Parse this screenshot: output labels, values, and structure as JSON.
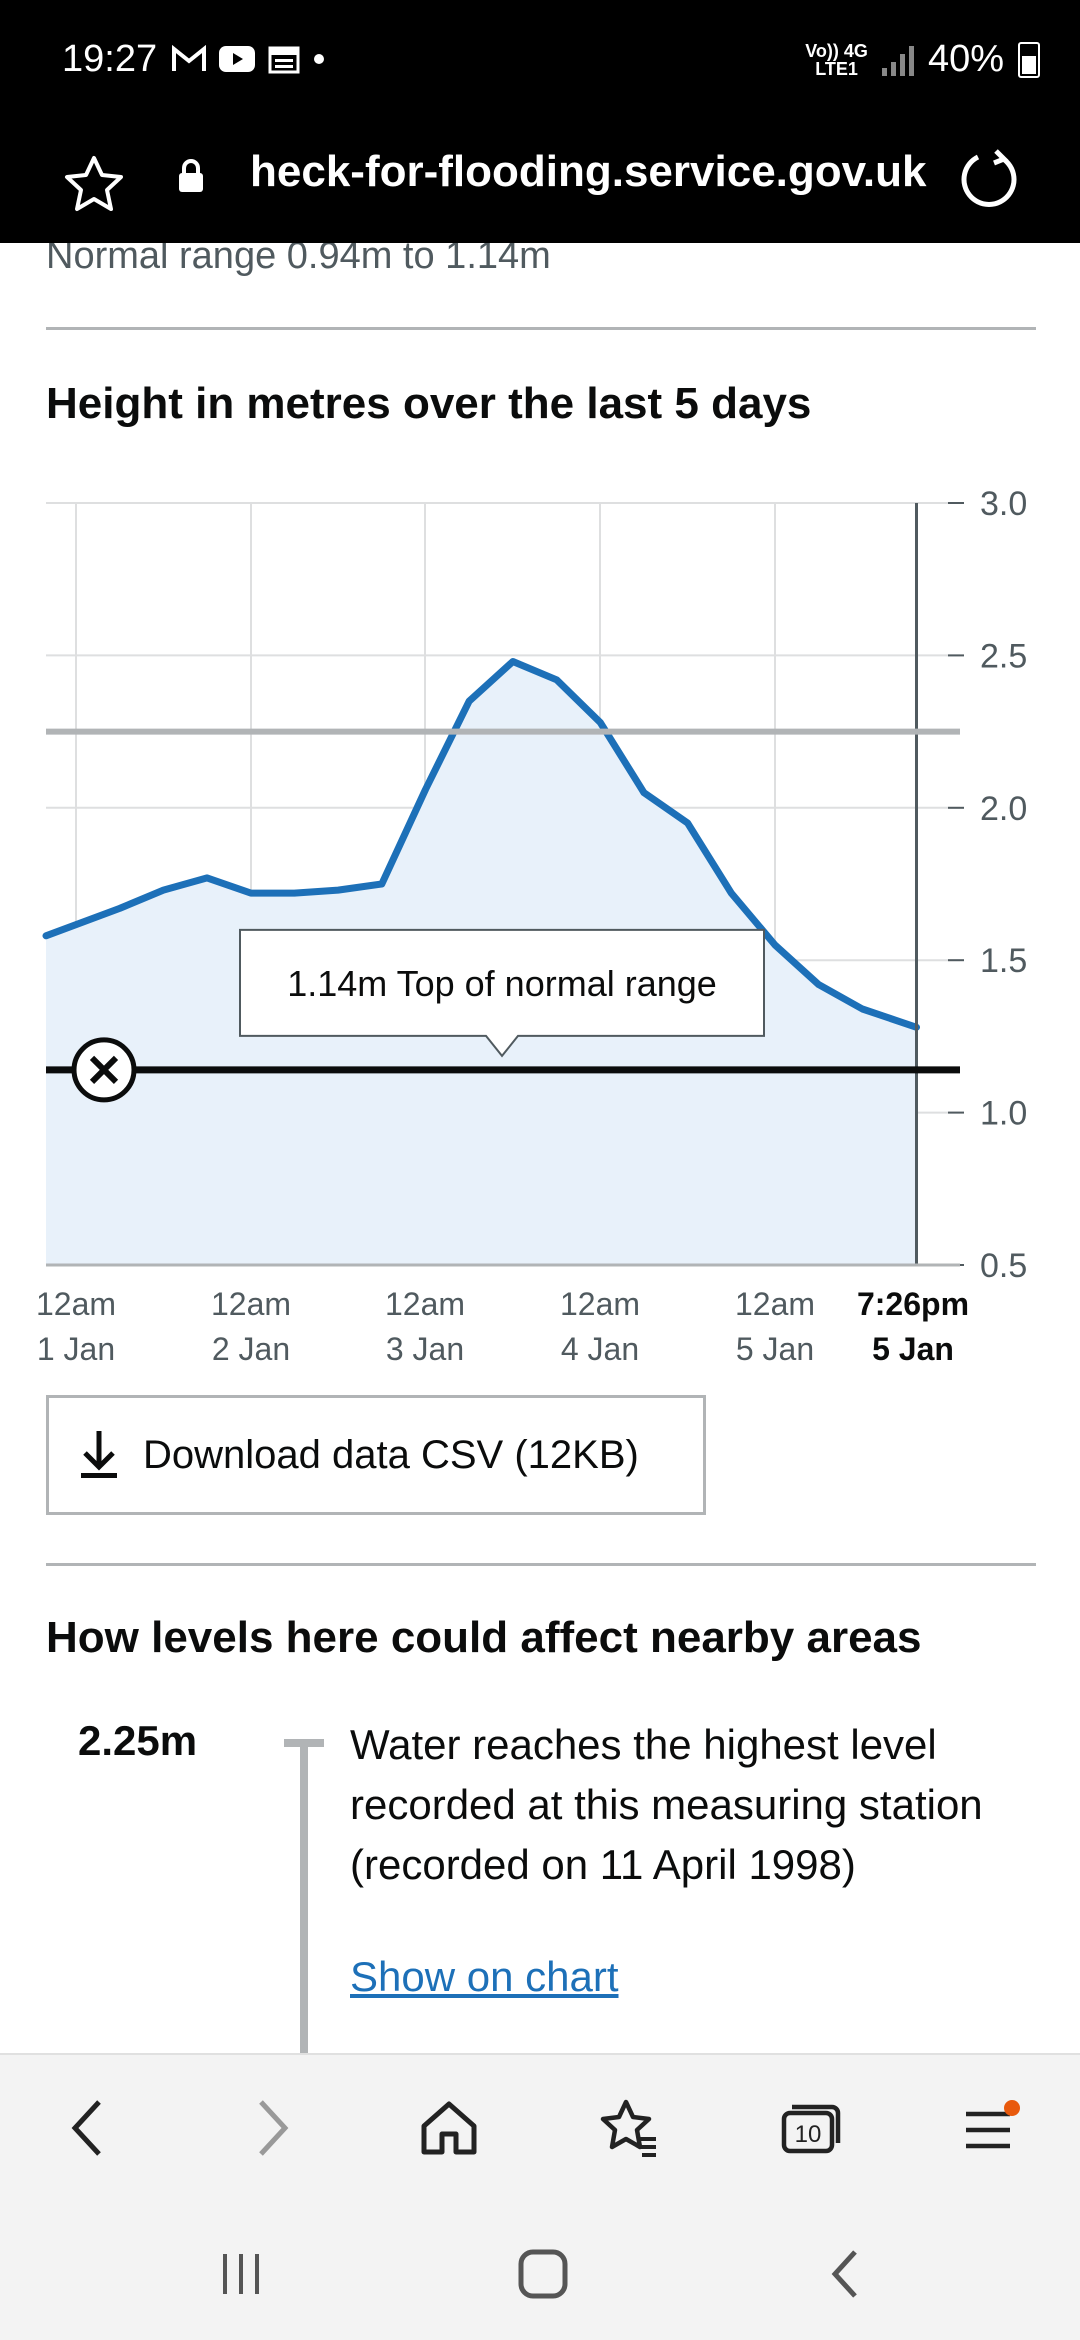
{
  "status": {
    "time": "19:27",
    "network_top": "Vo)) 4G",
    "network_bottom": "LTE1",
    "battery": "40%"
  },
  "browser": {
    "url": "heck-for-flooding.service.gov.uk"
  },
  "page": {
    "normal_range": "Normal range 0.94m to 1.14m",
    "chart_title": "Height in metres over the last 5 days",
    "download_label": "Download data CSV (12KB)",
    "section_title": "How levels here could affect nearby areas",
    "level": {
      "value": "2.25m",
      "text": "Water reaches the highest level recorded at this measuring station (recorded on 11 April 1998)",
      "link": "Show on chart"
    }
  },
  "chart_data": {
    "type": "area",
    "title": "Height in metres over the last 5 days",
    "ylim": [
      0.5,
      3.0
    ],
    "yticks": [
      "3.0",
      "2.5",
      "2.0",
      "1.5",
      "1.0",
      "0.5"
    ],
    "yaxis_position": "right",
    "xticks": [
      {
        "time": "12am",
        "date": "1 Jan"
      },
      {
        "time": "12am",
        "date": "2 Jan"
      },
      {
        "time": "12am",
        "date": "3 Jan"
      },
      {
        "time": "12am",
        "date": "4 Jan"
      },
      {
        "time": "12am",
        "date": "5 Jan"
      },
      {
        "time": "7:26pm",
        "date": "5 Jan"
      }
    ],
    "grid": true,
    "series": [
      {
        "x": [
          "1 Jan 00:00",
          "1 Jan 06:00",
          "1 Jan 12:00",
          "1 Jan 18:00",
          "2 Jan 00:00",
          "2 Jan 06:00",
          "2 Jan 12:00",
          "2 Jan 18:00",
          "3 Jan 00:00",
          "3 Jan 06:00",
          "3 Jan 12:00",
          "3 Jan 18:00",
          "4 Jan 00:00",
          "4 Jan 06:00",
          "4 Jan 12:00",
          "4 Jan 18:00",
          "5 Jan 00:00",
          "5 Jan 06:00",
          "5 Jan 12:00",
          "5 Jan 19:26"
        ],
        "values": [
          1.58,
          1.67,
          1.73,
          1.77,
          1.72,
          1.72,
          1.73,
          1.75,
          2.06,
          2.35,
          2.48,
          2.42,
          2.28,
          2.05,
          1.95,
          1.72,
          1.55,
          1.42,
          1.34,
          1.28
        ],
        "color": "#1d70b8",
        "fill": "#e8f1fa"
      }
    ],
    "reference_lines": [
      {
        "value": 2.25,
        "color": "#b1b4b6"
      },
      {
        "value": 1.14,
        "color": "#0b0c0c",
        "label": "1.14m Top of normal range"
      }
    ]
  }
}
